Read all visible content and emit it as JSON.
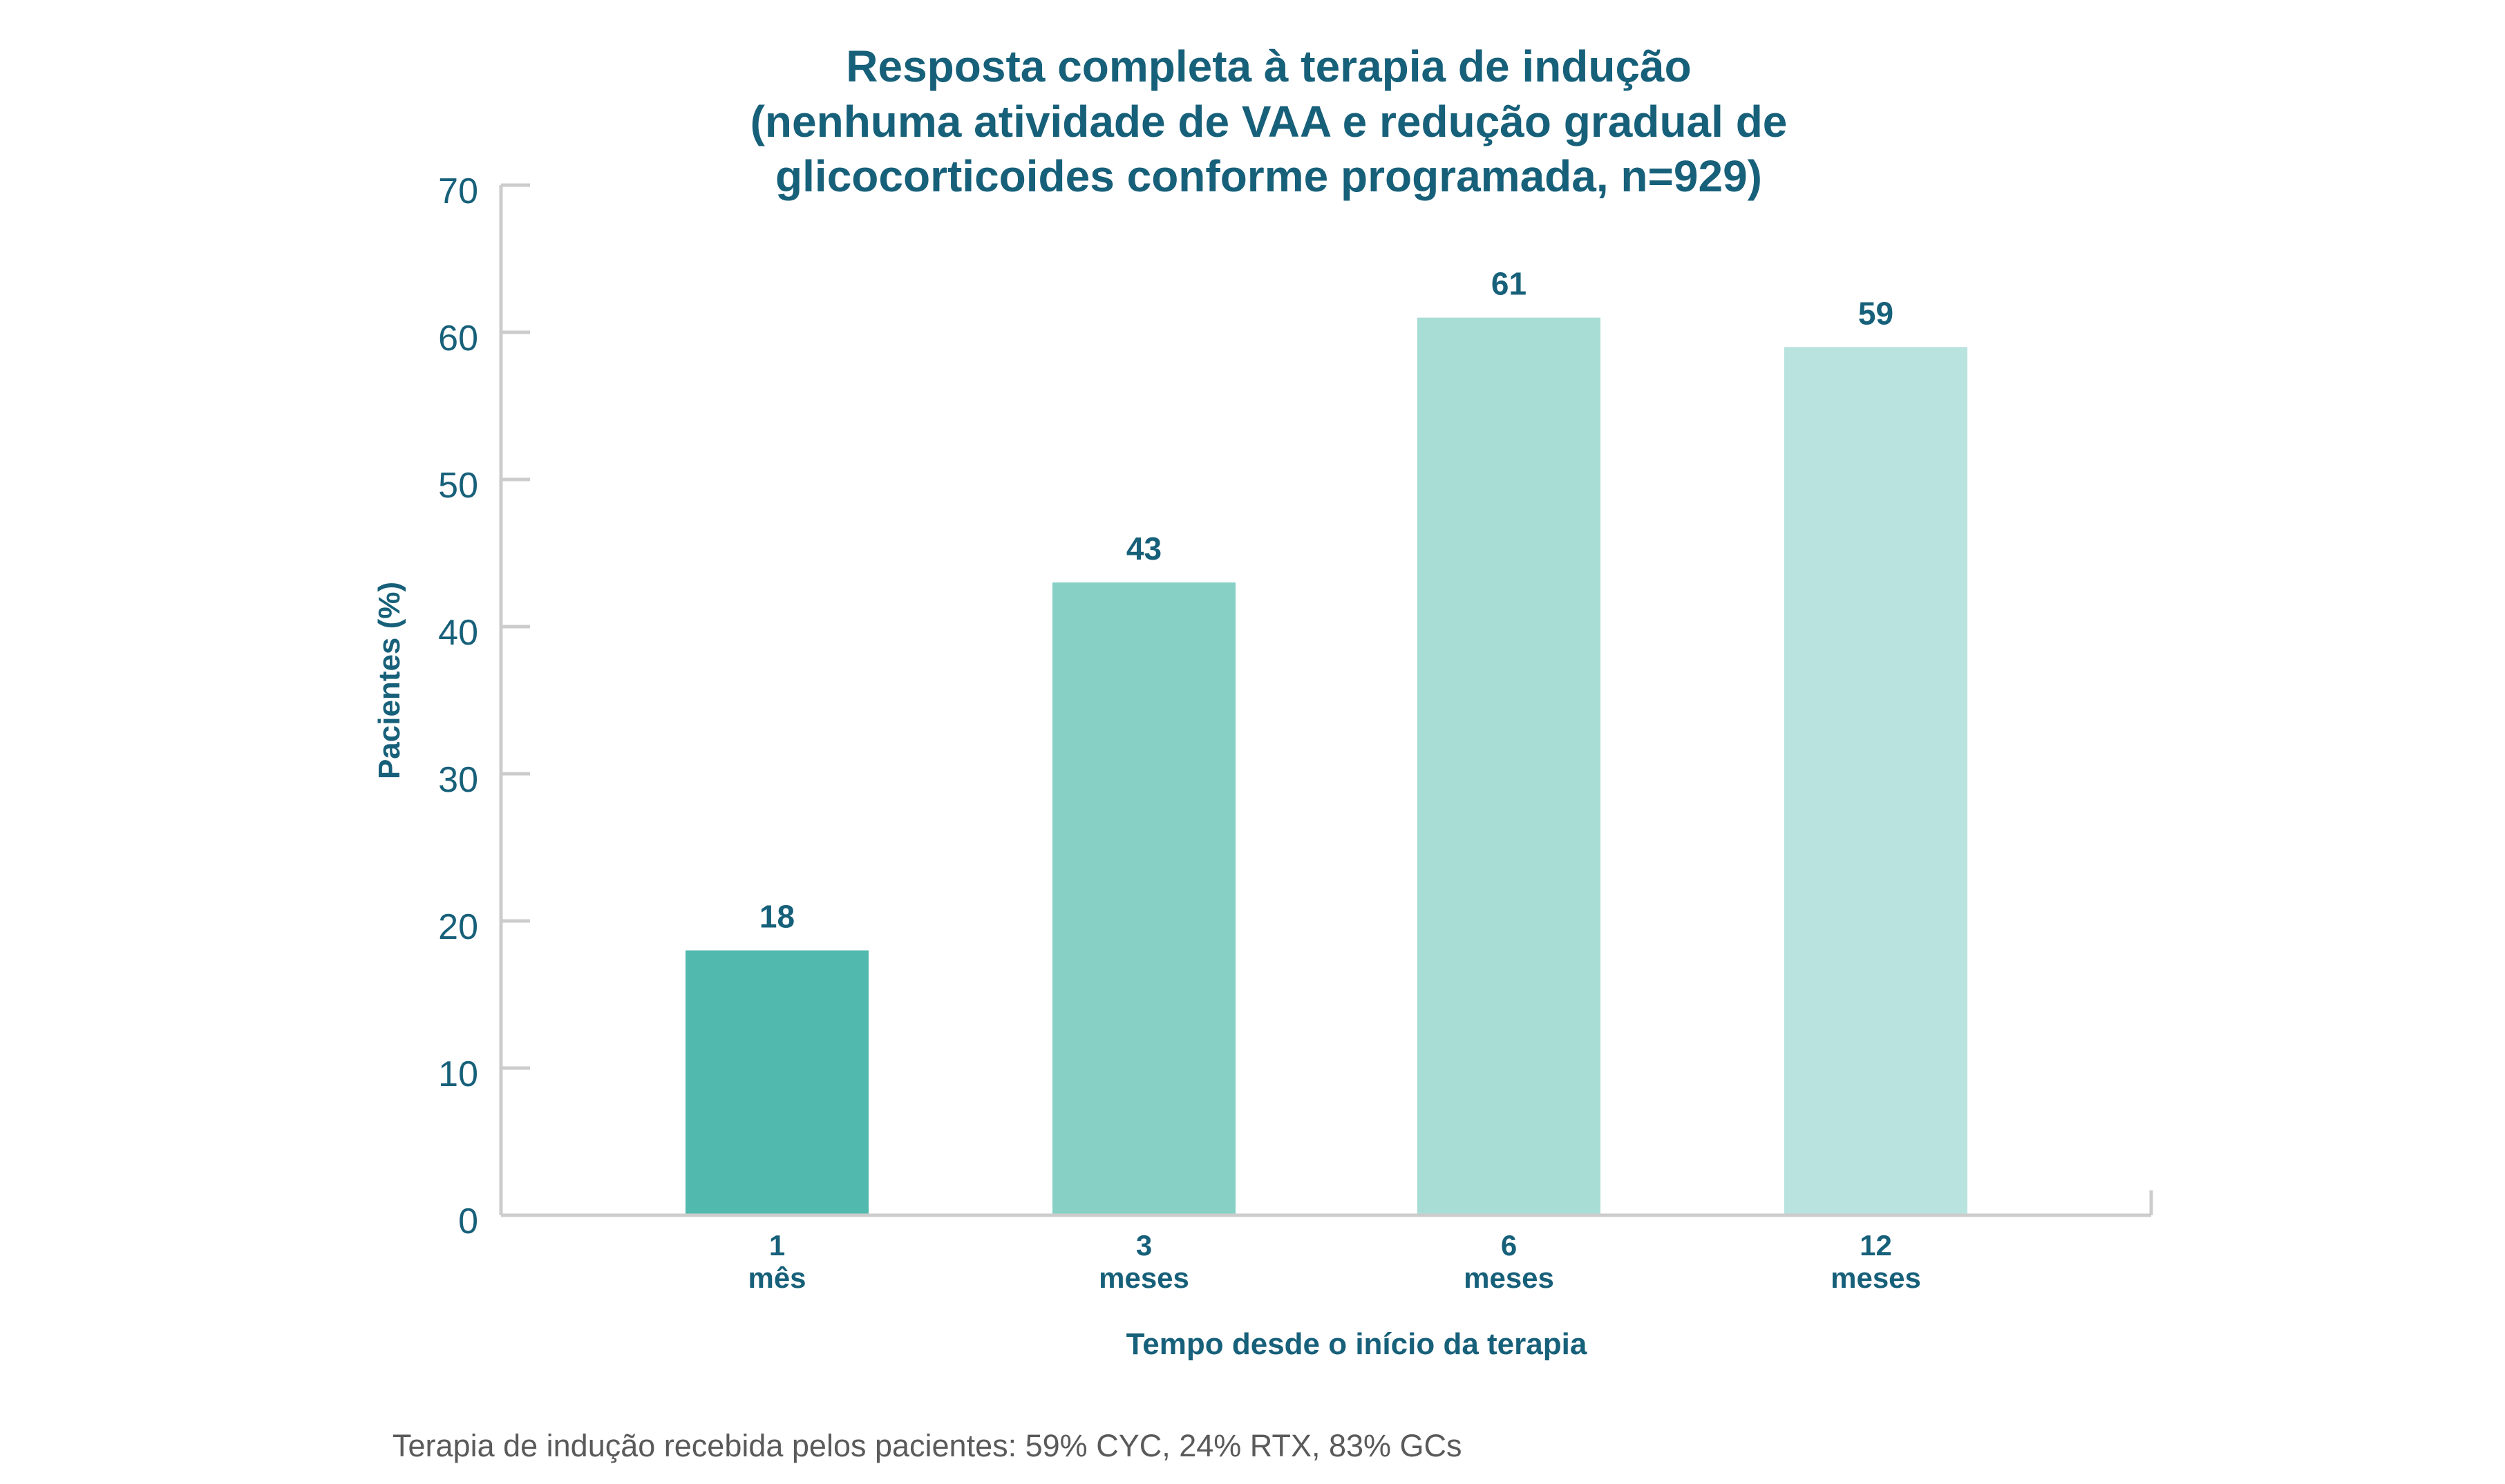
{
  "chart_data": {
    "type": "bar",
    "title": [
      "Resposta completa à terapia de indução",
      "(nenhuma atividade de VAA e redução gradual de",
      "glicocorticoides conforme programada, n=929)"
    ],
    "categories": [
      [
        "1",
        "mês"
      ],
      [
        "3",
        "meses"
      ],
      [
        "6",
        "meses"
      ],
      [
        "12",
        "meses"
      ]
    ],
    "values": [
      18,
      43,
      61,
      59
    ],
    "data_labels": [
      "18",
      "43",
      "61",
      "59"
    ],
    "bar_colors": [
      "#52b9ae",
      "#86d0c5",
      "#a8ddd6",
      "#b9e3df"
    ],
    "xlabel": "Tempo desde o início da terapia",
    "ylabel": "Pacientes (%)",
    "ylim": [
      0,
      70
    ],
    "yticks": [
      "0",
      "10",
      "20",
      "30",
      "40",
      "50",
      "60",
      "70"
    ],
    "grid": false,
    "text_color": "#17607a",
    "axis_color": "#cccccc"
  },
  "footnote": "Terapia de indução recebida pelos pacientes: 59% CYC, 24% RTX, 83% GCs"
}
